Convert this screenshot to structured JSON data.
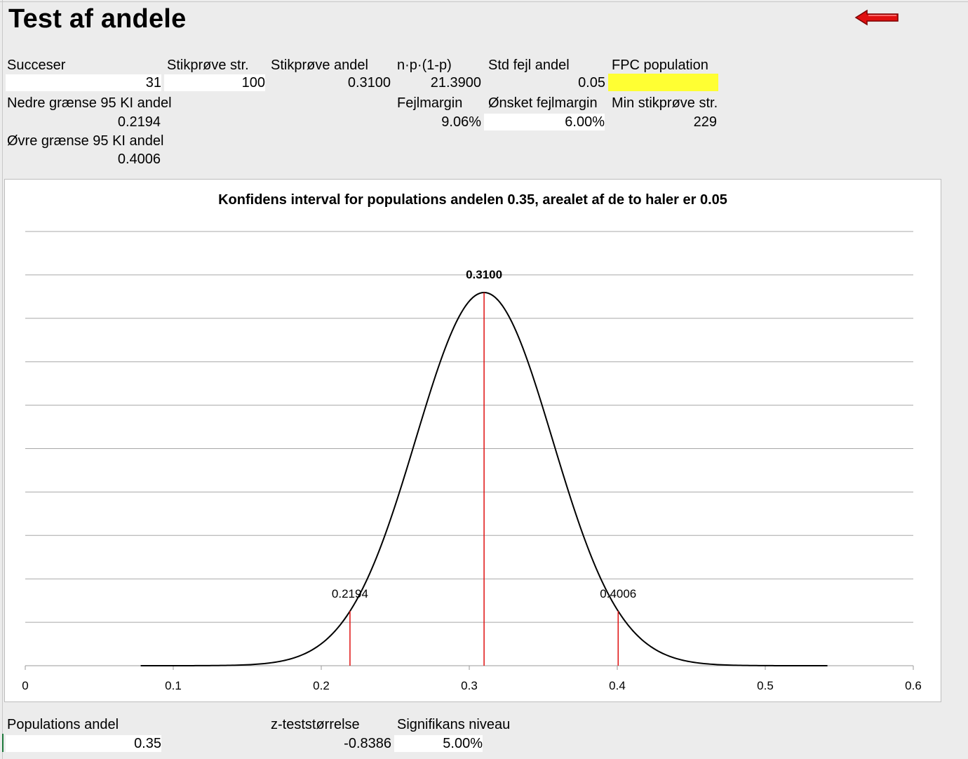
{
  "title": "Test af andele",
  "icons": {
    "arrow": "left-arrow-icon"
  },
  "colors": {
    "accent_red": "#e01010",
    "fpc_highlight": "#ffff33"
  },
  "fields": {
    "successes": {
      "label": "Succeser",
      "value": "31"
    },
    "sample_size": {
      "label": "Stikprøve str.",
      "value": "100"
    },
    "sample_proportion": {
      "label": "Stikprøve andel",
      "value": "0.3100"
    },
    "npq": {
      "label": "n·p·(1-p)",
      "value": "21.3900"
    },
    "std_error": {
      "label": "Std fejl andel",
      "value": "0.05"
    },
    "fpc_population": {
      "label": "FPC population",
      "value": ""
    },
    "lower_ci": {
      "label": "Nedre grænse 95 KI andel",
      "value": "0.2194"
    },
    "margin_of_error": {
      "label": "Fejlmargin",
      "value": "9.06%"
    },
    "desired_margin": {
      "label": "Ønsket fejlmargin",
      "value": "6.00%"
    },
    "min_sample": {
      "label": "Min stikprøve str.",
      "value": "229"
    },
    "upper_ci": {
      "label": "Øvre grænse 95 KI andel",
      "value": "0.4006"
    },
    "population_proportion": {
      "label": "Populations andel",
      "value": "0.35"
    },
    "z_statistic": {
      "label": "z-teststørrelse",
      "value": "-0.8386"
    },
    "significance": {
      "label": "Signifikans niveau",
      "value": "5.00%"
    }
  },
  "chart_data": {
    "type": "line",
    "title": "Konfidens interval for populations andelen 0.35, arealet af de to haler er 0.05",
    "xlabel": "",
    "ylabel": "",
    "xlim": [
      0,
      0.6
    ],
    "x_ticks": [
      "0",
      "0.1",
      "0.2",
      "0.3",
      "0.4",
      "0.5",
      "0.6"
    ],
    "grid": true,
    "series": [
      {
        "curve": "normal",
        "mean": 0.31,
        "sd": 0.0462,
        "x_range": [
          0.078,
          0.542
        ]
      }
    ],
    "markers": [
      {
        "x": 0.2194,
        "label": "0.2194",
        "color": "#e01010"
      },
      {
        "x": 0.31,
        "label": "0.3100",
        "color": "#e01010"
      },
      {
        "x": 0.4006,
        "label": "0.4006",
        "color": "#e01010"
      }
    ]
  }
}
